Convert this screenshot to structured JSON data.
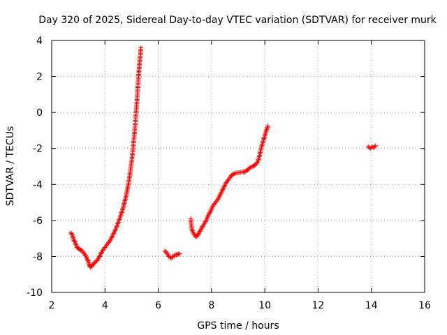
{
  "chart_data": {
    "type": "scatter",
    "title": "Day 320 of 2025, Sidereal Day-to-day VTEC variation (SDTVAR) for receiver murk",
    "xlabel": "GPS time / hours",
    "ylabel": "SDTVAR / TECUs",
    "xlim": [
      2,
      16
    ],
    "ylim": [
      -10,
      4
    ],
    "xticks": [
      2,
      4,
      6,
      8,
      10,
      12,
      14,
      16
    ],
    "yticks": [
      -10,
      -8,
      -6,
      -4,
      -2,
      0,
      2,
      4
    ],
    "xtick_labels": [
      "2",
      "4",
      "6",
      "8",
      "10",
      "12",
      "14",
      "16"
    ],
    "ytick_labels": [
      "-10",
      "-8",
      "-6",
      "-4",
      "-2",
      "0",
      "2",
      "4"
    ],
    "grid": true,
    "marker": "plus",
    "color": "#ff0000",
    "series": [
      {
        "segments": [
          [
            [
              2.72,
              -6.7
            ],
            [
              2.78,
              -6.8
            ],
            [
              2.83,
              -7.1
            ],
            [
              2.88,
              -7.2
            ],
            [
              2.95,
              -7.5
            ],
            [
              3.05,
              -7.6
            ],
            [
              3.15,
              -7.7
            ],
            [
              3.25,
              -7.9
            ],
            [
              3.32,
              -8.1
            ],
            [
              3.38,
              -8.3
            ],
            [
              3.42,
              -8.5
            ],
            [
              3.46,
              -8.6
            ],
            [
              3.52,
              -8.5
            ],
            [
              3.58,
              -8.4
            ],
            [
              3.65,
              -8.3
            ],
            [
              3.72,
              -8.2
            ],
            [
              3.8,
              -8.0
            ],
            [
              3.9,
              -7.7
            ],
            [
              4.0,
              -7.5
            ],
            [
              4.1,
              -7.3
            ],
            [
              4.2,
              -7.1
            ],
            [
              4.3,
              -6.8
            ],
            [
              4.4,
              -6.5
            ],
            [
              4.5,
              -6.1
            ],
            [
              4.6,
              -5.7
            ],
            [
              4.7,
              -5.2
            ],
            [
              4.8,
              -4.6
            ],
            [
              4.88,
              -4.0
            ],
            [
              4.95,
              -3.3
            ],
            [
              5.02,
              -2.5
            ],
            [
              5.08,
              -1.6
            ],
            [
              5.14,
              -0.6
            ],
            [
              5.19,
              0.4
            ],
            [
              5.23,
              1.3
            ],
            [
              5.27,
              2.2
            ],
            [
              5.31,
              2.9
            ],
            [
              5.35,
              3.6
            ]
          ],
          [
            [
              6.25,
              -7.7
            ],
            [
              6.32,
              -7.8
            ],
            [
              6.4,
              -8.0
            ],
            [
              6.48,
              -8.1
            ],
            [
              6.56,
              -8.0
            ],
            [
              6.64,
              -7.9
            ],
            [
              6.72,
              -7.9
            ],
            [
              6.8,
              -7.85
            ]
          ],
          [
            [
              7.22,
              -5.9
            ],
            [
              7.26,
              -6.5
            ],
            [
              7.32,
              -6.7
            ],
            [
              7.4,
              -6.9
            ],
            [
              7.48,
              -6.85
            ],
            [
              7.56,
              -6.6
            ],
            [
              7.64,
              -6.4
            ],
            [
              7.72,
              -6.2
            ],
            [
              7.8,
              -6.0
            ],
            [
              7.88,
              -5.7
            ],
            [
              7.96,
              -5.5
            ],
            [
              8.05,
              -5.2
            ],
            [
              8.15,
              -5.0
            ],
            [
              8.25,
              -4.8
            ],
            [
              8.35,
              -4.5
            ],
            [
              8.45,
              -4.2
            ],
            [
              8.55,
              -3.9
            ],
            [
              8.65,
              -3.7
            ],
            [
              8.75,
              -3.5
            ],
            [
              8.85,
              -3.4
            ],
            [
              8.95,
              -3.35
            ],
            [
              9.05,
              -3.35
            ],
            [
              9.15,
              -3.3
            ],
            [
              9.25,
              -3.3
            ],
            [
              9.35,
              -3.2
            ],
            [
              9.45,
              -3.05
            ],
            [
              9.55,
              -3.0
            ],
            [
              9.65,
              -2.9
            ],
            [
              9.75,
              -2.7
            ],
            [
              9.82,
              -2.3
            ],
            [
              9.88,
              -1.9
            ],
            [
              9.94,
              -1.6
            ],
            [
              10.0,
              -1.3
            ],
            [
              10.06,
              -1.0
            ],
            [
              10.12,
              -0.75
            ]
          ],
          [
            [
              13.88,
              -1.9
            ],
            [
              13.92,
              -1.95
            ],
            [
              13.96,
              -2.0
            ],
            [
              14.0,
              -1.95
            ],
            [
              14.04,
              -1.9
            ],
            [
              14.08,
              -1.95
            ],
            [
              14.12,
              -1.9
            ],
            [
              14.16,
              -1.85
            ]
          ]
        ]
      }
    ]
  }
}
